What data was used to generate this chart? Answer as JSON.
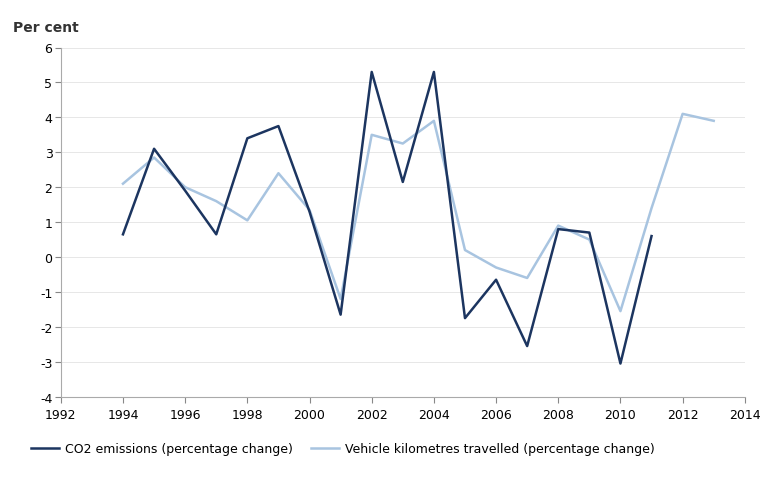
{
  "co2_years": [
    1994,
    1995,
    1996,
    1997,
    1998,
    1999,
    2000,
    2001,
    2002,
    2003,
    2004,
    2005,
    2006,
    2007,
    2008,
    2009,
    2010,
    2011
  ],
  "co2_values": [
    0.65,
    3.1,
    1.9,
    0.65,
    3.4,
    3.75,
    1.3,
    -1.65,
    5.3,
    2.15,
    5.3,
    -1.75,
    -0.65,
    -2.55,
    0.8,
    0.7,
    -3.05,
    0.6
  ],
  "vkt_years": [
    1994,
    1995,
    1996,
    1997,
    1998,
    1999,
    2000,
    2001,
    2002,
    2003,
    2004,
    2005,
    2006,
    2007,
    2008,
    2009,
    2010,
    2011,
    2012,
    2013
  ],
  "vkt_values": [
    2.1,
    2.85,
    2.0,
    1.6,
    1.05,
    2.4,
    1.35,
    -1.2,
    3.5,
    3.25,
    3.9,
    0.2,
    -0.3,
    -0.6,
    0.9,
    0.5,
    -1.55,
    1.4,
    4.1,
    3.9
  ],
  "co2_color": "#1c3560",
  "vkt_color": "#a8c4e0",
  "co2_label": "CO2 emissions (percentage change)",
  "vkt_label": "Vehicle kilometres travelled (percentage change)",
  "ylabel": "Per cent",
  "xlim": [
    1992,
    2014
  ],
  "ylim": [
    -4,
    6
  ],
  "yticks": [
    -4,
    -3,
    -2,
    -1,
    0,
    1,
    2,
    3,
    4,
    5,
    6
  ],
  "xticks": [
    1992,
    1994,
    1996,
    1998,
    2000,
    2002,
    2004,
    2006,
    2008,
    2010,
    2012,
    2014
  ],
  "linewidth": 1.8,
  "background_color": "#ffffff"
}
